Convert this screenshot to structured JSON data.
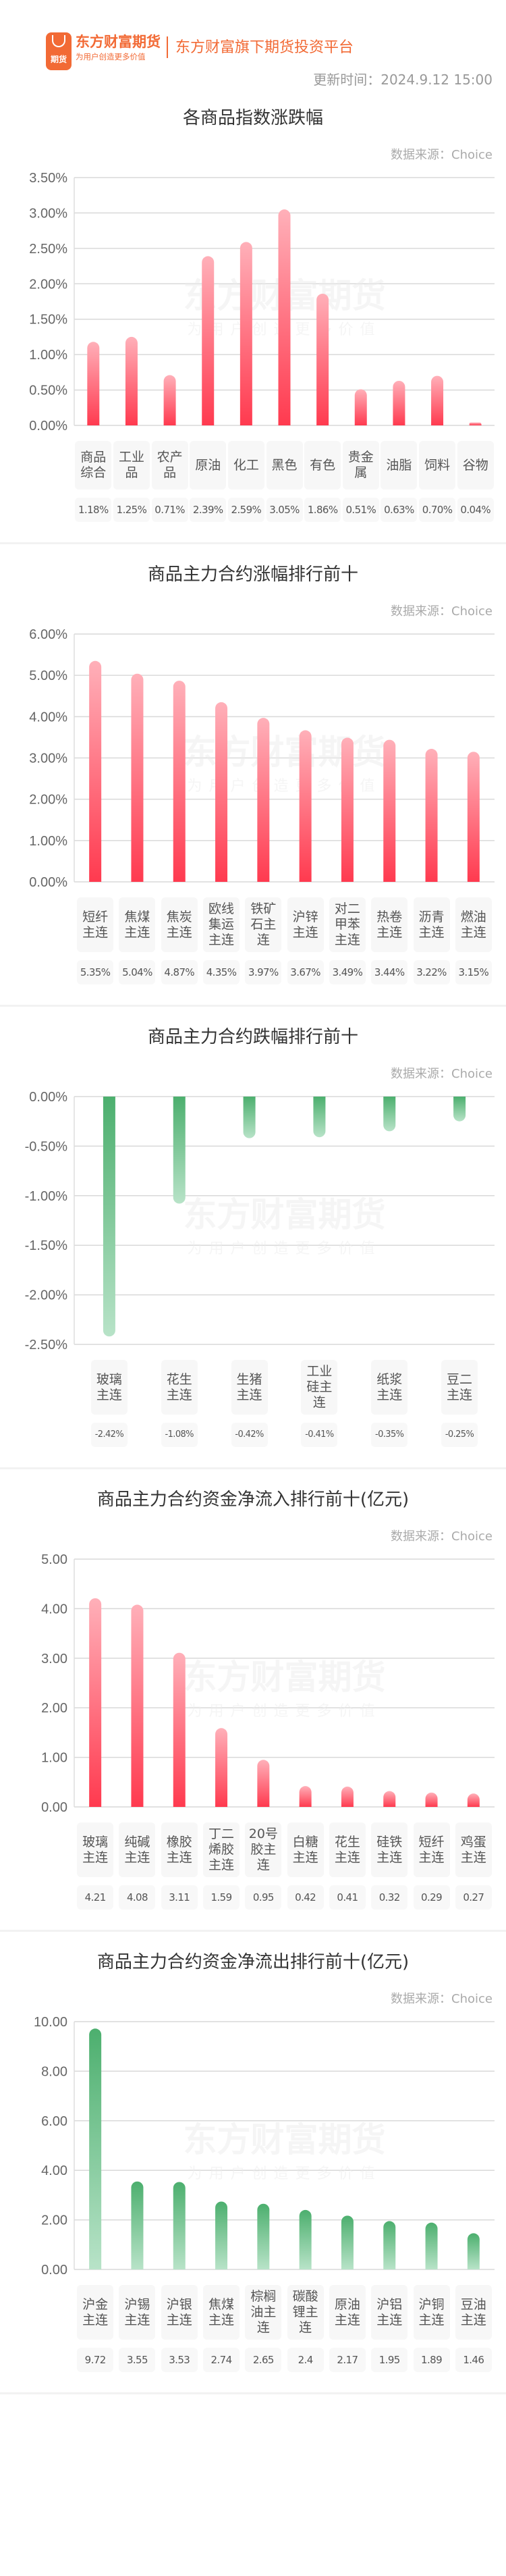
{
  "header": {
    "brand_name": "东方财富期货",
    "brand_slogan": "为用户创造更多价值",
    "logo_text": "期货",
    "platform": "东方财富旗下期货投资平台",
    "update_time": "更新时间：2024.9.12 15:00"
  },
  "watermark": {
    "name": "东方财富期货",
    "slogan": "为用户创造更多价值"
  },
  "colors": {
    "brand": "#f26a35",
    "up_top": "#ffb0b9",
    "up_bottom": "#ff3a4f",
    "down_top": "#4caf6e",
    "down_bottom": "#b8e3c8"
  },
  "chart_data": [
    {
      "type": "bar",
      "title": "各商品指数涨跌幅",
      "source": "数据来源：Choice",
      "categories": [
        "商品综合",
        "工业品",
        "农产品",
        "原油",
        "化工",
        "黑色",
        "有色",
        "贵金属",
        "油脂",
        "饲料",
        "谷物"
      ],
      "values": [
        1.18,
        1.25,
        0.71,
        2.39,
        2.59,
        3.05,
        1.86,
        0.51,
        0.63,
        0.7,
        0.04
      ],
      "value_labels": [
        "1.18%",
        "1.25%",
        "0.71%",
        "2.39%",
        "2.59%",
        "3.05%",
        "1.86%",
        "0.51%",
        "0.63%",
        "0.70%",
        "0.04%"
      ],
      "ylim": [
        0,
        3.5
      ],
      "yticks": [
        "0.00%",
        "0.50%",
        "1.00%",
        "1.50%",
        "2.00%",
        "2.50%",
        "3.00%",
        "3.50%"
      ],
      "grid": true,
      "color": "up"
    },
    {
      "type": "bar",
      "title": "商品主力合约涨幅排行前十",
      "source": "数据来源：Choice",
      "categories": [
        "短纤主连",
        "焦煤主连",
        "焦炭主连",
        "欧线集运主连",
        "铁矿石主连",
        "沪锌主连",
        "对二甲苯主连",
        "热卷主连",
        "沥青主连",
        "燃油主连"
      ],
      "values": [
        5.35,
        5.04,
        4.87,
        4.35,
        3.97,
        3.67,
        3.49,
        3.44,
        3.22,
        3.15
      ],
      "value_labels": [
        "5.35%",
        "5.04%",
        "4.87%",
        "4.35%",
        "3.97%",
        "3.67%",
        "3.49%",
        "3.44%",
        "3.22%",
        "3.15%"
      ],
      "ylim": [
        0,
        6
      ],
      "yticks": [
        "0.00%",
        "1.00%",
        "2.00%",
        "3.00%",
        "4.00%",
        "5.00%",
        "6.00%"
      ],
      "grid": true,
      "color": "up"
    },
    {
      "type": "bar",
      "title": "商品主力合约跌幅排行前十",
      "source": "数据来源：Choice",
      "categories": [
        "玻璃主连",
        "花生主连",
        "生猪主连",
        "工业硅主连",
        "纸浆主连",
        "豆二主连"
      ],
      "values": [
        -2.42,
        -1.08,
        -0.42,
        -0.41,
        -0.35,
        -0.25
      ],
      "value_labels": [
        "-2.42%",
        "-1.08%",
        "-0.42%",
        "-0.41%",
        "-0.35%",
        "-0.25%"
      ],
      "ylim": [
        -2.5,
        0
      ],
      "yticks": [
        "-2.50%",
        "-2.00%",
        "-1.50%",
        "-1.00%",
        "-0.50%",
        "0.00%"
      ],
      "grid": true,
      "color": "down"
    },
    {
      "type": "bar",
      "title": "商品主力合约资金净流入排行前十(亿元)",
      "source": "数据来源：Choice",
      "categories": [
        "玻璃主连",
        "纯碱主连",
        "橡胶主连",
        "丁二烯胶主连",
        "20号胶主连",
        "白糖主连",
        "花生主连",
        "硅铁主连",
        "短纤主连",
        "鸡蛋主连"
      ],
      "values": [
        4.21,
        4.08,
        3.11,
        1.59,
        0.95,
        0.42,
        0.41,
        0.32,
        0.29,
        0.27
      ],
      "value_labels": [
        "4.21",
        "4.08",
        "3.11",
        "1.59",
        "0.95",
        "0.42",
        "0.41",
        "0.32",
        "0.29",
        "0.27"
      ],
      "ylim": [
        0,
        5
      ],
      "yticks": [
        "0.00",
        "1.00",
        "2.00",
        "3.00",
        "4.00",
        "5.00"
      ],
      "grid": true,
      "color": "up"
    },
    {
      "type": "bar",
      "title": "商品主力合约资金净流出排行前十(亿元)",
      "source": "数据来源：Choice",
      "categories": [
        "沪金主连",
        "沪锡主连",
        "沪银主连",
        "焦煤主连",
        "棕榈油主连",
        "碳酸锂主连",
        "原油主连",
        "沪铝主连",
        "沪铜主连",
        "豆油主连"
      ],
      "values": [
        9.72,
        3.55,
        3.53,
        2.74,
        2.65,
        2.4,
        2.17,
        1.95,
        1.89,
        1.46
      ],
      "value_labels": [
        "9.72",
        "3.55",
        "3.53",
        "2.74",
        "2.65",
        "2.4",
        "2.17",
        "1.95",
        "1.89",
        "1.46"
      ],
      "ylim": [
        0,
        10
      ],
      "yticks": [
        "0.00",
        "2.00",
        "4.00",
        "6.00",
        "8.00",
        "10.00"
      ],
      "grid": true,
      "color": "down"
    }
  ]
}
